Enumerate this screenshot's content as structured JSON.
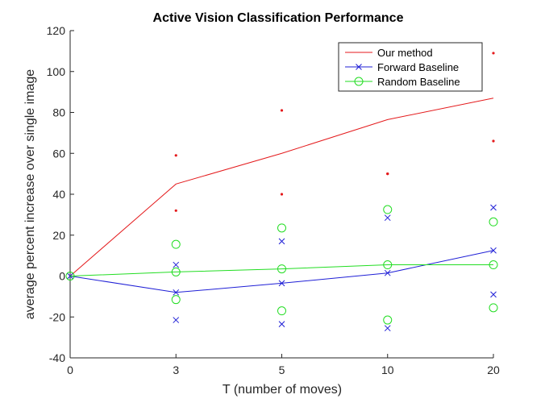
{
  "chart_data": {
    "type": "line",
    "title": "Active Vision Classification Performance",
    "xlabel": "T (number of moves)",
    "ylabel": "average percent increase over single image",
    "categories": [
      "0",
      "3",
      "5",
      "10",
      "20"
    ],
    "ylim": [
      -40,
      120
    ],
    "yticks": [
      -40,
      -20,
      0,
      20,
      40,
      60,
      80,
      100,
      120
    ],
    "grid": false,
    "legend_position": "top-right",
    "series": [
      {
        "name": "Our method",
        "color": "#e41a1c",
        "marker": "none",
        "values": [
          0,
          45,
          60,
          76.5,
          87
        ],
        "upper": [
          null,
          59,
          81,
          50,
          109
        ],
        "lower": [
          null,
          32,
          40,
          50,
          66
        ]
      },
      {
        "name": "Forward Baseline",
        "color": "#1f1fd6",
        "marker": "x",
        "values": [
          0,
          -8,
          -3.5,
          1.5,
          12.5
        ],
        "upper": [
          null,
          5.5,
          17,
          28.5,
          33.5
        ],
        "lower": [
          null,
          -21.5,
          -23.5,
          -25.5,
          -9
        ]
      },
      {
        "name": "Random Baseline",
        "color": "#22dd22",
        "marker": "circle",
        "values": [
          0,
          2,
          3.5,
          5.5,
          5.5
        ],
        "upper": [
          null,
          15.5,
          23.5,
          32.5,
          26.5
        ],
        "lower": [
          null,
          -11.5,
          -17,
          -21.5,
          -15.5
        ]
      }
    ]
  }
}
